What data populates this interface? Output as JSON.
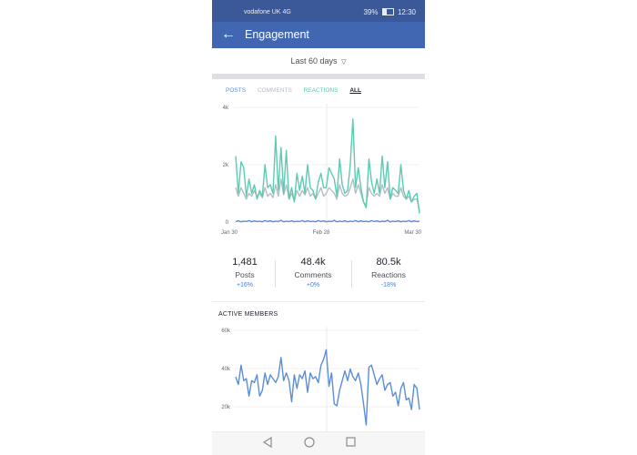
{
  "status_bar": {
    "carrier": "vodafone UK",
    "signal": "4G",
    "battery": "39%",
    "time": "12:30"
  },
  "header": {
    "title": "Engagement",
    "back_icon": "arrow-left-icon"
  },
  "range": {
    "label": "Last 60 days",
    "icon": "caret-down-icon"
  },
  "tabs": [
    {
      "label": "POSTS"
    },
    {
      "label": "COMMENTS"
    },
    {
      "label": "REACTIONS"
    },
    {
      "label": "ALL"
    }
  ],
  "stats": [
    {
      "value": "1,481",
      "label": "Posts",
      "change": "+16%"
    },
    {
      "value": "48.4k",
      "label": "Comments",
      "change": "+0%"
    },
    {
      "value": "80.5k",
      "label": "Reactions",
      "change": "-18%"
    }
  ],
  "active_members": {
    "title": "ACTIVE MEMBERS"
  },
  "colors": {
    "brand": "#4267b2",
    "posts": "#5b8ed6",
    "comments": "#b6bcc6",
    "reactions": "#5ccbb2"
  },
  "nav_icons": [
    "back-triangle-icon",
    "home-circle-icon",
    "recents-square-icon"
  ],
  "chart_data": [
    {
      "type": "line",
      "x_ticks": [
        "Jan 30",
        "Feb 28",
        "Mar 30"
      ],
      "y_ticks": [
        "0",
        "2k",
        "4k"
      ],
      "ylim": [
        0,
        4000
      ],
      "series": [
        {
          "name": "REACTIONS",
          "color": "#5ccbb2",
          "values": [
            2300,
            1000,
            2100,
            1900,
            900,
            1500,
            1000,
            1300,
            800,
            1100,
            900,
            2000,
            1200,
            1300,
            1000,
            3000,
            1100,
            2600,
            1000,
            2500,
            800,
            1200,
            700,
            1700,
            1100,
            1600,
            1000,
            2000,
            1200,
            1100,
            800,
            1400,
            1700,
            1200,
            1200,
            1900,
            1700,
            1500,
            900,
            2200,
            1300,
            1000,
            1100,
            2000,
            3600,
            1200,
            1900,
            1200,
            700,
            500,
            2200,
            1400,
            1000,
            1500,
            1000,
            2300,
            1200,
            2100,
            800,
            1200,
            1100,
            1000,
            2000,
            1100,
            800,
            1100,
            700,
            900,
            1000,
            300
          ]
        },
        {
          "name": "COMMENTS",
          "color": "#b6bcc6",
          "values": [
            1200,
            900,
            1200,
            1000,
            800,
            1000,
            900,
            1100,
            900,
            1000,
            850,
            1200,
            900,
            1000,
            850,
            1300,
            900,
            1500,
            950,
            1300,
            800,
            1000,
            750,
            1100,
            900,
            1100,
            950,
            1200,
            900,
            1000,
            800,
            1000,
            1200,
            900,
            1000,
            1200,
            1100,
            1000,
            800,
            1300,
            1000,
            900,
            950,
            1200,
            1500,
            1000,
            1300,
            1000,
            700,
            600,
            1200,
            1000,
            900,
            1000,
            900,
            1300,
            1000,
            1200,
            800,
            1000,
            900,
            900,
            1200,
            900,
            800,
            900,
            700,
            800,
            800,
            400
          ]
        },
        {
          "name": "POSTS",
          "color": "#5b8ed6",
          "values": [
            20,
            40,
            10,
            30,
            20,
            50,
            10,
            40,
            20,
            30,
            10,
            50,
            20,
            40,
            10,
            30,
            20,
            60,
            10,
            30,
            20,
            40,
            10,
            30,
            20,
            50,
            10,
            40,
            20,
            30,
            10,
            50,
            20,
            40,
            10,
            30,
            20,
            60,
            10,
            30,
            20,
            40,
            10,
            30,
            20,
            50,
            10,
            40,
            20,
            30,
            10,
            50,
            20,
            40,
            10,
            30,
            20,
            60,
            10,
            30,
            20,
            40,
            10,
            30,
            20,
            50,
            10,
            40,
            20,
            30
          ]
        }
      ]
    },
    {
      "type": "line",
      "title": "ACTIVE MEMBERS",
      "y_ticks": [
        "20k",
        "40k",
        "60k"
      ],
      "ylim": [
        13000,
        61000
      ],
      "series": [
        {
          "color": "#5b8ed6",
          "values": [
            37000,
            33000,
            43000,
            35000,
            36000,
            27000,
            35000,
            34000,
            38000,
            27000,
            30000,
            39000,
            33000,
            38000,
            36000,
            34000,
            37000,
            47000,
            35000,
            39000,
            35000,
            24000,
            38000,
            31000,
            38000,
            36000,
            40000,
            29000,
            39000,
            36000,
            37000,
            34000,
            43000,
            46000,
            51000,
            32000,
            39000,
            23000,
            22000,
            30000,
            35000,
            40000,
            35000,
            41000,
            37000,
            35000,
            39000,
            33000,
            23000,
            12000,
            42000,
            43000,
            38000,
            33000,
            36000,
            38000,
            30000,
            33000,
            34000,
            27000,
            29000,
            22000,
            31000,
            34000,
            25000,
            26000,
            20000,
            33000,
            31000,
            20000
          ]
        }
      ]
    }
  ]
}
